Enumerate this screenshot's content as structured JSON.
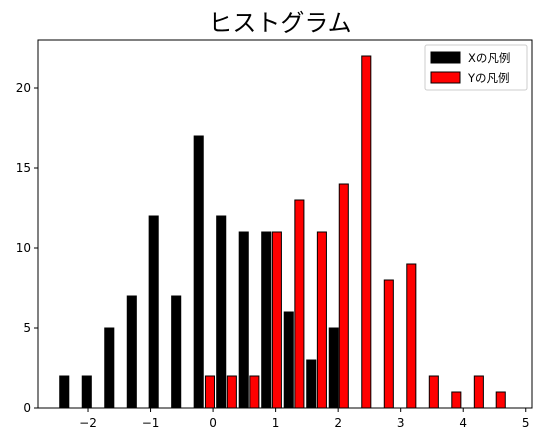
{
  "chart_data": {
    "type": "bar",
    "title": "ヒストグラム",
    "xlabel": "",
    "ylabel": "",
    "xlim": [
      -2.8,
      5.1
    ],
    "ylim": [
      0,
      23
    ],
    "x_ticks": [
      -2,
      -1,
      0,
      1,
      2,
      3,
      4,
      5
    ],
    "x_tick_labels": [
      "−2",
      "−1",
      "0",
      "1",
      "2",
      "3",
      "4",
      "5"
    ],
    "y_ticks": [
      0,
      5,
      10,
      15,
      20
    ],
    "y_tick_labels": [
      "0",
      "5",
      "10",
      "15",
      "20"
    ],
    "legend_position": "top-right",
    "grid": false,
    "series": [
      {
        "name": "Xの凡例",
        "color": "#000000",
        "x": [
          -2.38,
          -2.02,
          -1.66,
          -1.3,
          -0.95,
          -0.59,
          -0.23,
          0.13,
          0.49,
          0.85,
          1.21,
          1.57,
          1.93
        ],
        "values": [
          2,
          2,
          5,
          7,
          12,
          7,
          17,
          12,
          11,
          11,
          6,
          3,
          5
        ]
      },
      {
        "name": "Yの凡例",
        "color": "#ff0000",
        "x": [
          -0.05,
          0.3,
          0.66,
          1.02,
          1.38,
          1.74,
          2.09,
          2.45,
          2.81,
          3.17,
          3.53,
          3.89,
          4.25,
          4.6
        ],
        "values": [
          2,
          2,
          2,
          11,
          13,
          11,
          14,
          22,
          8,
          9,
          2,
          1,
          2,
          1
        ]
      }
    ],
    "bar_width": 0.145
  }
}
